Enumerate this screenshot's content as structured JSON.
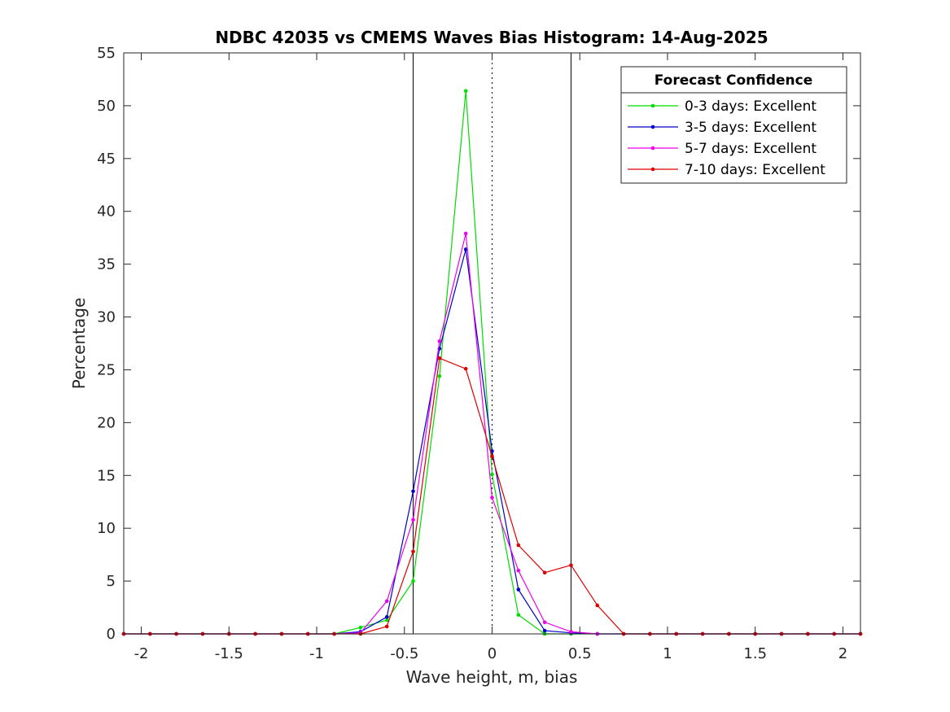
{
  "chart_data": {
    "type": "line",
    "title": "NDBC 42035 vs CMEMS Waves Bias Histogram: 14-Aug-2025",
    "xlabel": "Wave height, m, bias",
    "ylabel": "Percentage",
    "xlim": [
      -2.1,
      2.1
    ],
    "ylim": [
      0,
      55
    ],
    "xticks": [
      -2,
      -1.5,
      -1,
      -0.5,
      0,
      0.5,
      1,
      1.5,
      2
    ],
    "xtick_labels": [
      "-2",
      "-1.5",
      "-1",
      "-0.5",
      "0",
      "0.5",
      "1",
      "1.5",
      "2"
    ],
    "yticks": [
      0,
      5,
      10,
      15,
      20,
      25,
      30,
      35,
      40,
      45,
      50,
      55
    ],
    "ytick_labels": [
      "0",
      "5",
      "10",
      "15",
      "20",
      "25",
      "30",
      "35",
      "40",
      "45",
      "50",
      "55"
    ],
    "grid": false,
    "reference_lines": [
      {
        "x": -0.45,
        "style": "solid"
      },
      {
        "x": 0,
        "style": "dotted"
      },
      {
        "x": 0.45,
        "style": "solid"
      }
    ],
    "legend": {
      "title": "Forecast Confidence",
      "position": "top-right"
    },
    "x": [
      -2.1,
      -1.95,
      -1.8,
      -1.65,
      -1.5,
      -1.35,
      -1.2,
      -1.05,
      -0.9,
      -0.75,
      -0.6,
      -0.45,
      -0.3,
      -0.15,
      0,
      0.15,
      0.3,
      0.45,
      0.6,
      0.75,
      0.9,
      1.05,
      1.2,
      1.35,
      1.5,
      1.65,
      1.8,
      1.95,
      2.1
    ],
    "series": [
      {
        "name": "0-3 days: Excellent",
        "color": "#00dd00",
        "values": [
          0,
          0,
          0,
          0,
          0,
          0,
          0,
          0,
          0,
          0.6,
          1.3,
          5.0,
          24.4,
          51.4,
          15.1,
          1.8,
          0,
          0,
          0,
          0,
          0,
          0,
          0,
          0,
          0,
          0,
          0,
          0,
          0
        ]
      },
      {
        "name": "3-5 days: Excellent",
        "color": "#0000cc",
        "values": [
          0,
          0,
          0,
          0,
          0,
          0,
          0,
          0,
          0,
          0.2,
          1.6,
          13.5,
          27.0,
          36.4,
          17.3,
          4.2,
          0.3,
          0.1,
          0,
          0,
          0,
          0,
          0,
          0,
          0,
          0,
          0,
          0,
          0
        ]
      },
      {
        "name": "5-7 days: Excellent",
        "color": "#ee00ee",
        "values": [
          0,
          0,
          0,
          0,
          0,
          0,
          0,
          0,
          0,
          0.1,
          3.1,
          10.8,
          27.7,
          37.9,
          12.9,
          6.0,
          1.1,
          0.2,
          0,
          0,
          0,
          0,
          0,
          0,
          0,
          0,
          0,
          0,
          0
        ]
      },
      {
        "name": "7-10 days: Excellent",
        "color": "#dd0000",
        "values": [
          0,
          0,
          0,
          0,
          0,
          0,
          0,
          0,
          0,
          0,
          0.7,
          7.8,
          26.1,
          25.1,
          16.8,
          8.4,
          5.8,
          6.5,
          2.7,
          0,
          0,
          0,
          0,
          0,
          0,
          0,
          0,
          0,
          0
        ]
      }
    ]
  }
}
